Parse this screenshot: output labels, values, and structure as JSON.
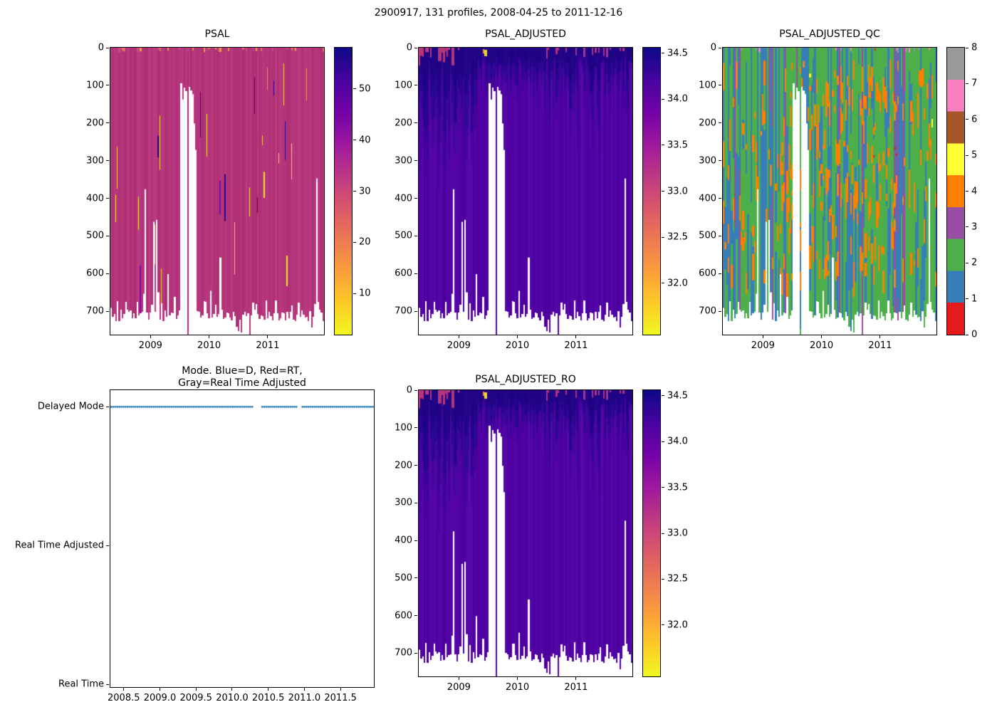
{
  "figure": {
    "title": "2900917, 131 profiles, 2008-04-25 to 2011-12-16"
  },
  "palette": {
    "plasma_low_to_high": [
      "#f0f921",
      "#fdc926",
      "#fa9e3b",
      "#ed7953",
      "#d8576b",
      "#bd3786",
      "#9c179e",
      "#7201a8",
      "#46039f",
      "#0d0887"
    ],
    "qc_categories": [
      "#e41a1c",
      "#377eb8",
      "#4daf4a",
      "#984ea3",
      "#ff7f00",
      "#ffff33",
      "#a65628",
      "#f781bf",
      "#999999"
    ],
    "marker_blue": "#1f77b4",
    "psal_background": "#b5357b",
    "adjusted_background": "#5103a4",
    "adjusted_dark_top": "#2c0593",
    "axis_color": "#000000"
  },
  "chart_data": [
    {
      "id": "psal",
      "type": "heatmap",
      "title": "PSAL",
      "x_tick_labels": [
        "2009",
        "2010",
        "2011"
      ],
      "x_tick_values": [
        2009,
        2010,
        2011
      ],
      "x_range": [
        2008.315,
        2011.962
      ],
      "y_tick_labels": [
        "0",
        "100",
        "200",
        "300",
        "400",
        "500",
        "600",
        "700"
      ],
      "y_tick_values": [
        0,
        100,
        200,
        300,
        400,
        500,
        600,
        700
      ],
      "y_range": [
        0,
        762
      ],
      "n_profiles": 131,
      "background_value": 34,
      "anomaly_low_values": [
        4,
        10
      ],
      "anomaly_high_values": [
        45,
        55
      ],
      "missing_data_gap_time": [
        2009.5,
        2009.8
      ],
      "typical_profile_max_depth": [
        690,
        760
      ],
      "colorbar": {
        "tick_labels": [
          "10",
          "20",
          "30",
          "40",
          "50"
        ],
        "tick_values": [
          10,
          20,
          30,
          40,
          50
        ],
        "range": [
          2,
          58
        ],
        "colormap": "plasma_r"
      }
    },
    {
      "id": "psal_adjusted",
      "type": "heatmap",
      "title": "PSAL_ADJUSTED",
      "x_tick_labels": [
        "2009",
        "2010",
        "2011"
      ],
      "x_tick_values": [
        2009,
        2010,
        2011
      ],
      "x_range": [
        2008.315,
        2011.962
      ],
      "y_tick_labels": [
        "0",
        "100",
        "200",
        "300",
        "400",
        "500",
        "600",
        "700"
      ],
      "y_tick_values": [
        0,
        100,
        200,
        300,
        400,
        500,
        600,
        700
      ],
      "y_range": [
        0,
        762
      ],
      "n_profiles": 131,
      "background_value": 34.15,
      "surface_dark_value": 34.45,
      "surface_low_value": 33.2,
      "missing_data_gap_time": [
        2009.5,
        2009.8
      ],
      "colorbar": {
        "tick_labels": [
          "32.0",
          "32.5",
          "33.0",
          "33.5",
          "34.0",
          "34.5"
        ],
        "tick_values": [
          32,
          32.5,
          33,
          33.5,
          34,
          34.5
        ],
        "range": [
          31.44,
          34.56
        ],
        "colormap": "plasma_r"
      }
    },
    {
      "id": "psal_adjusted_qc",
      "type": "heatmap",
      "title": "PSAL_ADJUSTED_QC",
      "x_tick_labels": [
        "2009",
        "2010",
        "2011"
      ],
      "x_tick_values": [
        2009,
        2010,
        2011
      ],
      "x_range": [
        2008.315,
        2011.962
      ],
      "y_tick_labels": [
        "0",
        "100",
        "200",
        "300",
        "400",
        "500",
        "600",
        "700"
      ],
      "y_tick_values": [
        0,
        100,
        200,
        300,
        400,
        500,
        600,
        700
      ],
      "y_range": [
        0,
        762
      ],
      "n_profiles": 131,
      "categories": [
        0,
        1,
        2,
        3,
        4,
        5,
        6,
        7,
        8
      ],
      "dominant_categories": [
        1,
        2,
        4
      ],
      "missing_data_gap_time": [
        2009.5,
        2009.8
      ],
      "colorbar": {
        "tick_labels": [
          "0",
          "1",
          "2",
          "3",
          "4",
          "5",
          "6",
          "7",
          "8"
        ],
        "tick_values": [
          0,
          1,
          2,
          3,
          4,
          5,
          6,
          7,
          8
        ],
        "range": [
          0,
          8
        ],
        "colormap": "qc_categories"
      }
    },
    {
      "id": "mode",
      "type": "scatter",
      "title_lines": [
        "Mode. Blue=D, Red=RT,",
        "Gray=Real Time Adjusted"
      ],
      "x_tick_labels": [
        "2008.5",
        "2009.0",
        "2009.5",
        "2010.0",
        "2010.5",
        "2011.0",
        "2011.5"
      ],
      "x_tick_values": [
        2008.5,
        2009.0,
        2009.5,
        2010.0,
        2010.5,
        2011.0,
        2011.5
      ],
      "x_range": [
        2008.315,
        2011.962
      ],
      "y_tick_labels": [
        "Delayed Mode",
        "Real Time Adjusted",
        "Real Time"
      ],
      "y_tick_values": [
        2,
        1,
        0
      ],
      "y_range": [
        -0.02,
        2.12
      ],
      "series": [
        {
          "name": "mode",
          "constant_value": "Delayed Mode",
          "n_points": 131,
          "marker_color": "#1f77b4",
          "gap_times": [
            [
              2010.3,
              2010.4
            ],
            [
              2010.9,
              2010.97
            ]
          ]
        }
      ]
    },
    {
      "id": "psal_adjusted_ro",
      "type": "heatmap",
      "title": "PSAL_ADJUSTED_RO",
      "x_tick_labels": [
        "2009",
        "2010",
        "2011"
      ],
      "x_tick_values": [
        2009,
        2010,
        2011
      ],
      "x_range": [
        2008.315,
        2011.962
      ],
      "y_tick_labels": [
        "0",
        "100",
        "200",
        "300",
        "400",
        "500",
        "600",
        "700"
      ],
      "y_tick_values": [
        0,
        100,
        200,
        300,
        400,
        500,
        600,
        700
      ],
      "y_range": [
        0,
        762
      ],
      "n_profiles": 131,
      "background_value": 34.15,
      "surface_dark_value": 34.45,
      "missing_data_gap_time": [
        2009.5,
        2009.8
      ],
      "colorbar": {
        "tick_labels": [
          "32.0",
          "32.5",
          "33.0",
          "33.5",
          "34.0",
          "34.5"
        ],
        "tick_values": [
          32,
          32.5,
          33,
          33.5,
          34,
          34.5
        ],
        "range": [
          31.44,
          34.56
        ],
        "colormap": "plasma_r"
      }
    }
  ]
}
